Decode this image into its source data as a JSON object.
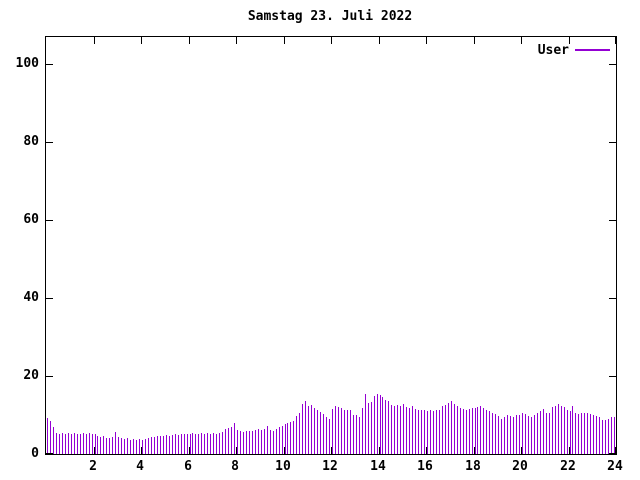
{
  "title": "Samstag 23. Juli 2022",
  "legend": {
    "label": "User"
  },
  "colors": {
    "series": "#9400d3",
    "axis": "#000000",
    "background": "#ffffff",
    "text": "#000000"
  },
  "chart_data": {
    "type": "bar",
    "title": "Samstag 23. Juli 2022",
    "xlabel": "",
    "ylabel": "",
    "x_unit": "hour of day",
    "x_start_hour": 0,
    "x_step_hours": 0.125,
    "xlim": [
      0,
      24
    ],
    "ylim": [
      0,
      107
    ],
    "x_ticks": [
      2,
      4,
      6,
      8,
      10,
      12,
      14,
      16,
      18,
      20,
      22,
      24
    ],
    "y_ticks": [
      0,
      20,
      40,
      60,
      80,
      100
    ],
    "grid": false,
    "legend_position": "top-right",
    "bar_style": "impulses",
    "series": [
      {
        "name": "User",
        "color": "#9400d3",
        "values": [
          9.2,
          8.5,
          7.0,
          5.4,
          5.2,
          5.4,
          5.2,
          5.3,
          5.2,
          5.4,
          5.2,
          5.0,
          5.3,
          5.2,
          5.4,
          5.2,
          5.0,
          4.6,
          4.3,
          4.5,
          4.2,
          4.1,
          4.4,
          5.6,
          4.3,
          4.0,
          3.8,
          4.0,
          3.7,
          3.8,
          3.6,
          3.8,
          3.7,
          3.9,
          4.2,
          4.4,
          4.3,
          4.5,
          4.6,
          4.7,
          4.8,
          4.7,
          4.9,
          5.0,
          4.8,
          5.0,
          5.2,
          5.0,
          5.1,
          5.3,
          5.1,
          5.2,
          5.4,
          5.2,
          5.3,
          5.1,
          5.3,
          5.2,
          5.4,
          5.7,
          6.3,
          6.6,
          7.0,
          8.0,
          6.2,
          5.8,
          5.6,
          5.8,
          6.0,
          5.9,
          6.1,
          6.3,
          6.1,
          6.3,
          7.3,
          6.2,
          6.0,
          6.4,
          7.0,
          7.3,
          7.7,
          8.0,
          8.2,
          8.4,
          9.7,
          10.6,
          12.7,
          13.6,
          12.3,
          12.5,
          11.9,
          11.3,
          10.8,
          10.2,
          9.5,
          8.9,
          11.5,
          12.3,
          12.0,
          11.8,
          11.4,
          11.2,
          11.4,
          10.0,
          10.0,
          9.6,
          11.9,
          15.3,
          13.0,
          13.3,
          14.8,
          15.5,
          15.2,
          14.5,
          13.8,
          13.5,
          12.6,
          12.4,
          12.6,
          12.2,
          12.7,
          12.1,
          11.9,
          12.2,
          11.6,
          11.3,
          11.2,
          11.4,
          11.1,
          11.3,
          11.0,
          11.2,
          11.4,
          12.3,
          12.6,
          13.1,
          13.5,
          12.9,
          12.3,
          11.9,
          11.6,
          11.4,
          11.6,
          11.8,
          11.7,
          12.1,
          12.3,
          11.9,
          11.4,
          10.9,
          10.6,
          10.2,
          9.8,
          9.1,
          9.6,
          10.0,
          9.7,
          9.5,
          9.9,
          10.1,
          10.4,
          10.2,
          9.8,
          9.4,
          9.9,
          10.6,
          11.0,
          11.5,
          10.6,
          10.4,
          12.0,
          12.2,
          12.8,
          12.3,
          12.1,
          11.4,
          11.0,
          12.3,
          10.5,
          10.2,
          10.4,
          10.6,
          10.4,
          10.3,
          10.0,
          9.8,
          9.6,
          8.8,
          8.7,
          9.1,
          9.5,
          9.4
        ]
      }
    ]
  }
}
